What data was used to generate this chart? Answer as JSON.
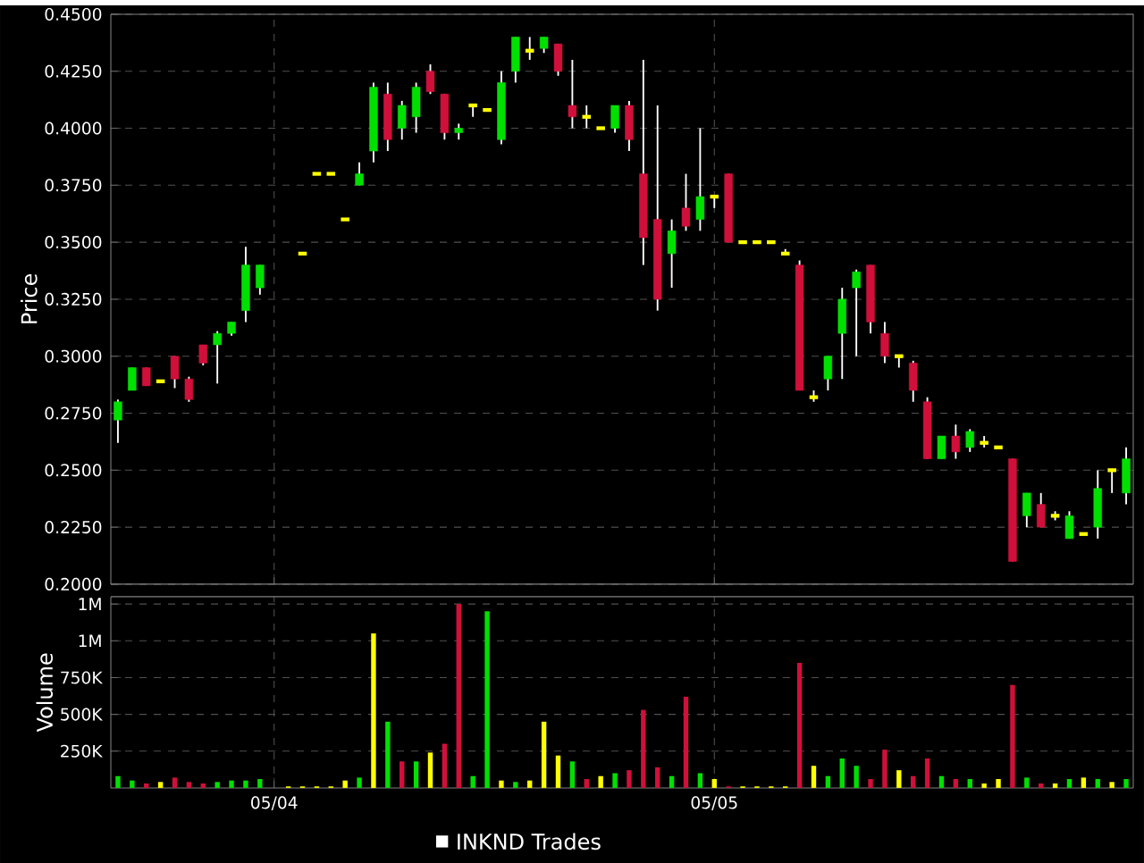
{
  "chart_data": [
    {
      "type": "candlestick",
      "ylabel": "Price",
      "tick_labels": "y",
      "grid": true,
      "legend": "bottom",
      "categories": [
        null,
        null,
        null,
        null,
        null,
        null,
        null,
        null,
        null,
        null,
        null,
        null,
        null,
        null,
        null,
        null,
        null,
        null,
        null,
        null,
        null,
        null,
        null,
        null,
        null,
        null,
        null,
        null,
        null,
        null,
        null,
        null,
        null,
        null,
        null,
        null,
        null,
        null,
        null,
        null,
        null,
        null,
        null,
        null,
        null,
        null,
        null,
        null,
        null,
        null,
        null,
        null,
        null,
        null,
        null,
        null,
        null,
        null,
        null,
        null,
        null,
        null,
        null,
        null,
        null,
        null,
        null,
        null,
        null,
        null,
        null,
        null
      ],
      "ylim": [
        0.2,
        0.45
      ],
      "yticks": [
        {
          "value": 0.2,
          "label": "0.2000"
        },
        {
          "value": 0.225,
          "label": "0.2250"
        },
        {
          "value": 0.25,
          "label": "0.2500"
        },
        {
          "value": 0.275,
          "label": "0.2750"
        },
        {
          "value": 0.3,
          "label": "0.3000"
        },
        {
          "value": 0.325,
          "label": "0.3250"
        },
        {
          "value": 0.35,
          "label": "0.3500"
        },
        {
          "value": 0.375,
          "label": "0.3750"
        },
        {
          "value": 0.4,
          "label": "0.4000"
        },
        {
          "value": 0.425,
          "label": "0.4250"
        },
        {
          "value": 0.45,
          "label": "0.4500"
        }
      ],
      "series": [
        {
          "name": "INKND Trades",
          "color": "#ffffff",
          "ohlc": [
            [
              0.272,
              0.281,
              0.262,
              0.28
            ],
            [
              0.285,
              0.295,
              0.285,
              0.295
            ],
            [
              0.295,
              0.295,
              0.287,
              0.287
            ],
            [
              0.289,
              0.289,
              0.289,
              0.289
            ],
            [
              0.3,
              0.3,
              0.286,
              0.29
            ],
            [
              0.29,
              0.291,
              0.28,
              0.281
            ],
            [
              0.305,
              0.305,
              0.296,
              0.297
            ],
            [
              0.305,
              0.311,
              0.288,
              0.31
            ],
            [
              0.31,
              0.315,
              0.309,
              0.315
            ],
            [
              0.32,
              0.348,
              0.315,
              0.34
            ],
            [
              0.33,
              0.34,
              0.327,
              0.34
            ],
            null,
            null,
            [
              0.345,
              0.345,
              0.345,
              0.345
            ],
            [
              0.38,
              0.38,
              0.38,
              0.38
            ],
            [
              0.38,
              0.38,
              0.38,
              0.38
            ],
            [
              0.36,
              0.36,
              0.36,
              0.36
            ],
            [
              0.375,
              0.385,
              0.375,
              0.38
            ],
            [
              0.39,
              0.42,
              0.385,
              0.418
            ],
            [
              0.415,
              0.42,
              0.39,
              0.395
            ],
            [
              0.4,
              0.412,
              0.395,
              0.41
            ],
            [
              0.405,
              0.42,
              0.398,
              0.418
            ],
            [
              0.425,
              0.428,
              0.415,
              0.416
            ],
            [
              0.415,
              0.415,
              0.395,
              0.398
            ],
            [
              0.398,
              0.402,
              0.395,
              0.4
            ],
            [
              0.41,
              0.41,
              0.405,
              0.41
            ],
            [
              0.408,
              0.408,
              0.408,
              0.408
            ],
            [
              0.395,
              0.425,
              0.393,
              0.42
            ],
            [
              0.425,
              0.44,
              0.42,
              0.44
            ],
            [
              0.434,
              0.44,
              0.43,
              0.434
            ],
            [
              0.435,
              0.44,
              0.433,
              0.44
            ],
            [
              0.437,
              0.437,
              0.423,
              0.425
            ],
            [
              0.41,
              0.43,
              0.4,
              0.405
            ],
            [
              0.405,
              0.41,
              0.4,
              0.405
            ],
            [
              0.4,
              0.4,
              0.4,
              0.4
            ],
            [
              0.4,
              0.41,
              0.398,
              0.41
            ],
            [
              0.41,
              0.412,
              0.39,
              0.395
            ],
            [
              0.38,
              0.43,
              0.34,
              0.352
            ],
            [
              0.36,
              0.41,
              0.32,
              0.325
            ],
            [
              0.345,
              0.36,
              0.33,
              0.355
            ],
            [
              0.365,
              0.38,
              0.355,
              0.357
            ],
            [
              0.36,
              0.4,
              0.355,
              0.37
            ],
            [
              0.37,
              0.37,
              0.365,
              0.37
            ],
            [
              0.38,
              0.38,
              0.35,
              0.35
            ],
            [
              0.35,
              0.35,
              0.35,
              0.35
            ],
            [
              0.35,
              0.35,
              0.35,
              0.35
            ],
            [
              0.35,
              0.35,
              0.35,
              0.35
            ],
            [
              0.345,
              0.347,
              0.345,
              0.345
            ],
            [
              0.34,
              0.342,
              0.285,
              0.285
            ],
            [
              0.282,
              0.285,
              0.28,
              0.282
            ],
            [
              0.29,
              0.3,
              0.285,
              0.3
            ],
            [
              0.31,
              0.33,
              0.29,
              0.325
            ],
            [
              0.33,
              0.338,
              0.3,
              0.337
            ],
            [
              0.34,
              0.34,
              0.31,
              0.315
            ],
            [
              0.31,
              0.315,
              0.297,
              0.3
            ],
            [
              0.3,
              0.3,
              0.295,
              0.3
            ],
            [
              0.297,
              0.298,
              0.28,
              0.285
            ],
            [
              0.28,
              0.282,
              0.255,
              0.255
            ],
            [
              0.255,
              0.265,
              0.255,
              0.265
            ],
            [
              0.265,
              0.27,
              0.255,
              0.258
            ],
            [
              0.26,
              0.268,
              0.258,
              0.267
            ],
            [
              0.262,
              0.265,
              0.26,
              0.262
            ],
            [
              0.26,
              0.26,
              0.26,
              0.26
            ],
            [
              0.255,
              0.255,
              0.21,
              0.21
            ],
            [
              0.23,
              0.24,
              0.225,
              0.24
            ],
            [
              0.235,
              0.24,
              0.225,
              0.225
            ],
            [
              0.23,
              0.232,
              0.228,
              0.23
            ],
            [
              0.22,
              0.232,
              0.22,
              0.23
            ],
            [
              0.222,
              0.222,
              0.222,
              0.222
            ],
            [
              0.225,
              0.25,
              0.22,
              0.242
            ],
            [
              0.25,
              0.25,
              0.24,
              0.25
            ],
            [
              0.24,
              0.26,
              0.235,
              0.255
            ]
          ],
          "colors": [
            "#00e000",
            "#00e000",
            "#d0103a",
            "#ffff00",
            "#d0103a",
            "#d0103a",
            "#d0103a",
            "#00e000",
            "#00e000",
            "#00e000",
            "#00e000",
            null,
            null,
            "#ffff00",
            "#ffff00",
            "#ffff00",
            "#ffff00",
            "#00e000",
            "#00e000",
            "#d0103a",
            "#00e000",
            "#00e000",
            "#d0103a",
            "#d0103a",
            "#00e000",
            "#ffff00",
            "#ffff00",
            "#00e000",
            "#00e000",
            "#ffff00",
            "#00e000",
            "#d0103a",
            "#d0103a",
            "#ffff00",
            "#ffff00",
            "#00e000",
            "#d0103a",
            "#d0103a",
            "#d0103a",
            "#00e000",
            "#d0103a",
            "#00e000",
            "#ffff00",
            "#d0103a",
            "#ffff00",
            "#ffff00",
            "#ffff00",
            "#ffff00",
            "#d0103a",
            "#ffff00",
            "#00e000",
            "#00e000",
            "#00e000",
            "#d0103a",
            "#d0103a",
            "#ffff00",
            "#d0103a",
            "#d0103a",
            "#00e000",
            "#d0103a",
            "#00e000",
            "#ffff00",
            "#ffff00",
            "#d0103a",
            "#00e000",
            "#d0103a",
            "#ffff00",
            "#00e000",
            "#ffff00",
            "#00e000",
            "#ffff00",
            "#00e000"
          ]
        }
      ]
    },
    {
      "type": "bar",
      "ylabel": "Volume",
      "grid": true,
      "categories": [
        null,
        null,
        null,
        null,
        null,
        null,
        null,
        null,
        null,
        null,
        null,
        "05/04",
        null,
        null,
        null,
        null,
        null,
        null,
        null,
        null,
        null,
        null,
        null,
        null,
        null,
        null,
        null,
        null,
        null,
        null,
        null,
        null,
        null,
        null,
        null,
        null,
        null,
        null,
        null,
        null,
        null,
        null,
        "05/05",
        null,
        null,
        null,
        null,
        null,
        null,
        null,
        null,
        null,
        null,
        null,
        null,
        null,
        null,
        null,
        null,
        null,
        null,
        null,
        null,
        null,
        null,
        null,
        null,
        null,
        null,
        null,
        null,
        null
      ],
      "ylim": [
        0,
        1300000
      ],
      "yticks": [
        {
          "value": 250000,
          "label": "250K"
        },
        {
          "value": 500000,
          "label": "500K"
        },
        {
          "value": 750000,
          "label": "750K"
        },
        {
          "value": 1000000,
          "label": "1M"
        },
        {
          "value": 1250000,
          "label": "1M"
        }
      ],
      "values": [
        80000,
        50000,
        30000,
        40000,
        70000,
        40000,
        30000,
        40000,
        50000,
        50000,
        60000,
        null,
        10000,
        10000,
        10000,
        10000,
        50000,
        70000,
        1050000,
        450000,
        180000,
        180000,
        240000,
        300000,
        1250000,
        80000,
        1200000,
        50000,
        40000,
        50000,
        450000,
        220000,
        180000,
        60000,
        80000,
        100000,
        120000,
        530000,
        140000,
        80000,
        620000,
        100000,
        60000,
        10000,
        10000,
        10000,
        10000,
        10000,
        850000,
        150000,
        80000,
        200000,
        150000,
        60000,
        260000,
        120000,
        80000,
        200000,
        80000,
        60000,
        60000,
        30000,
        60000,
        700000,
        70000,
        30000,
        30000,
        60000,
        70000,
        60000,
        40000,
        60000
      ],
      "colors": [
        "#00e000",
        "#00e000",
        "#d0103a",
        "#ffff00",
        "#d0103a",
        "#d0103a",
        "#d0103a",
        "#00e000",
        "#00e000",
        "#00e000",
        "#00e000",
        null,
        "#ffff00",
        "#ffff00",
        "#ffff00",
        "#ffff00",
        "#ffff00",
        "#00e000",
        "#ffff00",
        "#00e000",
        "#d0103a",
        "#00e000",
        "#ffff00",
        "#d0103a",
        "#d0103a",
        "#00e000",
        "#00e000",
        "#ffff00",
        "#00e000",
        "#ffff00",
        "#ffff00",
        "#ffff00",
        "#00e000",
        "#d0103a",
        "#ffff00",
        "#00e000",
        "#d0103a",
        "#d0103a",
        "#d0103a",
        "#00e000",
        "#d0103a",
        "#00e000",
        "#ffff00",
        "#d0103a",
        "#ffff00",
        "#ffff00",
        "#ffff00",
        "#ffff00",
        "#d0103a",
        "#ffff00",
        "#00e000",
        "#00e000",
        "#00e000",
        "#d0103a",
        "#d0103a",
        "#ffff00",
        "#d0103a",
        "#d0103a",
        "#00e000",
        "#d0103a",
        "#00e000",
        "#ffff00",
        "#ffff00",
        "#d0103a",
        "#00e000",
        "#d0103a",
        "#ffff00",
        "#00e000",
        "#ffff00",
        "#00e000",
        "#ffff00",
        "#00e000"
      ]
    }
  ]
}
